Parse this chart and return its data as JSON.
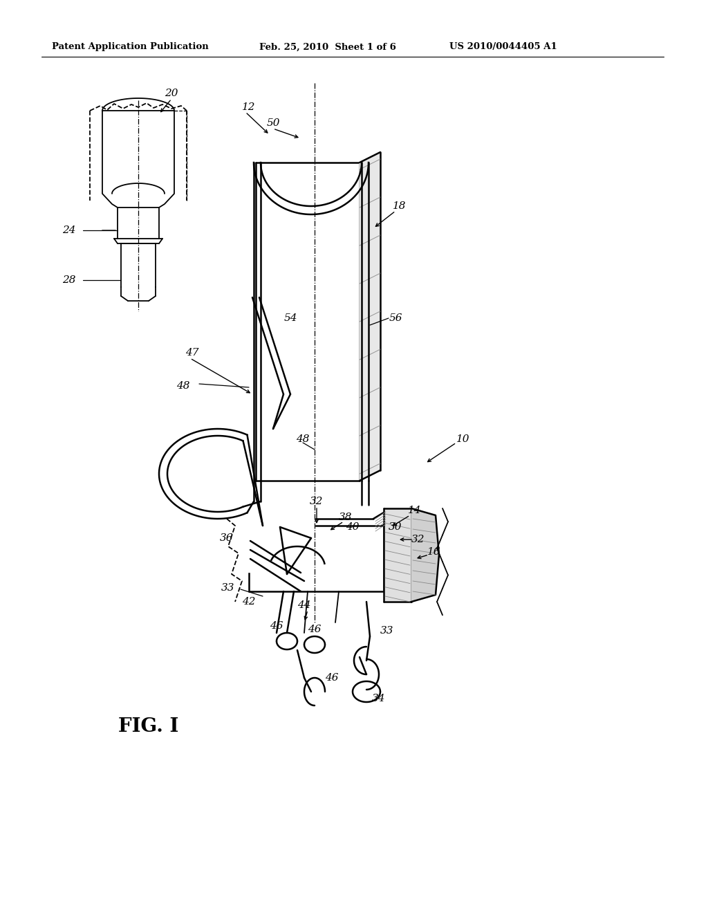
{
  "bg_color": "#ffffff",
  "header_left": "Patent Application Publication",
  "header_mid": "Feb. 25, 2010  Sheet 1 of 6",
  "header_right": "US 2010/0044405 A1",
  "fig_label": "FIG. I"
}
